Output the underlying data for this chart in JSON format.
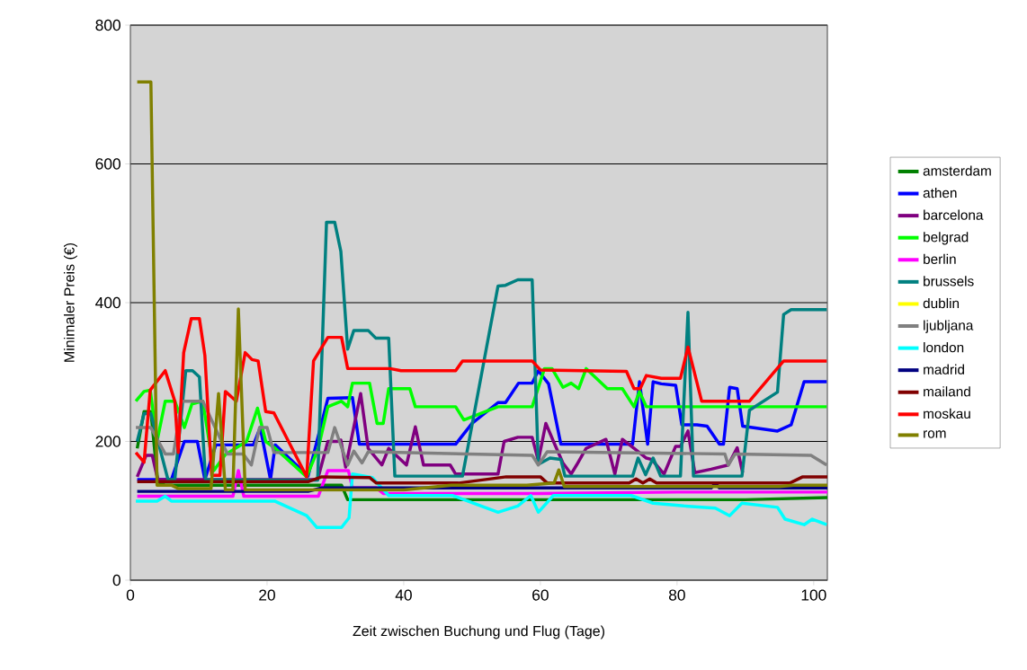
{
  "chart_data": {
    "type": "line",
    "xlabel": "Zeit zwischen Buchung und Flug (Tage)",
    "ylabel": "Minimaler Preis (€)",
    "xlim": [
      0,
      102
    ],
    "xticks": [
      0,
      20,
      40,
      60,
      80,
      100
    ],
    "ylim": [
      0,
      800
    ],
    "yticks": [
      0,
      200,
      400,
      600,
      800
    ],
    "grid": "y",
    "legend": "right",
    "line_style": "solid",
    "series": [
      {
        "name": "amsterdam",
        "color": "#008000",
        "x": [
          1,
          2,
          3,
          4,
          5,
          28,
          30.9,
          31.8,
          33,
          60,
          70,
          80,
          90,
          102
        ],
        "values": [
          190,
          243,
          243,
          142,
          137,
          137,
          137,
          116,
          116,
          116,
          116,
          116,
          116,
          119
        ]
      },
      {
        "name": "athen",
        "color": "#0000ff",
        "x": [
          1,
          6,
          7.9,
          9.8,
          10.9,
          12.5,
          18,
          19,
          20.5,
          21.2,
          26,
          28.9,
          32.5,
          33.5,
          47.6,
          50,
          53.8,
          54.9,
          56.8,
          58.8,
          59.7,
          61.2,
          63,
          73.5,
          74.5,
          75.7,
          76.5,
          77.7,
          79.8,
          80.7,
          82.9,
          84.4,
          86.2,
          86.8,
          87.7,
          88.8,
          89.6,
          94.7,
          96.7,
          98.6,
          101.9
        ],
        "values": [
          145,
          145,
          200,
          200,
          145,
          195,
          195,
          220,
          145,
          195,
          150,
          262,
          263,
          196,
          196,
          226,
          256,
          256,
          284,
          284,
          302,
          283,
          196,
          196,
          286,
          196,
          286,
          283,
          281,
          224,
          224,
          222,
          196,
          196,
          278,
          276,
          222,
          215,
          224,
          286,
          286
        ]
      },
      {
        "name": "barcelona",
        "color": "#800080",
        "x": [
          1,
          2.3,
          3.2,
          4,
          27.4,
          28.9,
          30.3,
          30.8,
          31.5,
          33.7,
          34.8,
          36.8,
          37.8,
          40.4,
          41.7,
          42.9,
          46.8,
          47.6,
          53.8,
          54.7,
          56.7,
          58.8,
          59.7,
          60.8,
          62,
          63.3,
          64.5,
          65.3,
          66.7,
          69.6,
          70.9,
          72,
          73.7,
          75.5,
          76.3,
          78.1,
          79.8,
          80.5,
          81.6,
          82.6,
          85,
          87.5,
          88.8,
          89.6
        ],
        "values": [
          149,
          180,
          180,
          145,
          145,
          200,
          200,
          202,
          163,
          269,
          190,
          166,
          190,
          166,
          221,
          166,
          166,
          153,
          153,
          200,
          206,
          206,
          172,
          226,
          198,
          169,
          153,
          166,
          190,
          203,
          153,
          203,
          190,
          176,
          174,
          153,
          193,
          193,
          215,
          155,
          160,
          166,
          191,
          155
        ]
      },
      {
        "name": "belgrad",
        "color": "#00ff00",
        "x": [
          0.8,
          2,
          2.9,
          3.9,
          5.1,
          6.5,
          7.9,
          9,
          10.6,
          12.2,
          13.9,
          17,
          18.6,
          19.8,
          21.2,
          25.8,
          27.5,
          28.9,
          30.9,
          31.8,
          32.5,
          35,
          36.1,
          37,
          37.8,
          40.9,
          41.7,
          47.6,
          48.8,
          53.8,
          58.8,
          60.6,
          61.7,
          63.3,
          64.5,
          65.6,
          66.7,
          69.8,
          72,
          73.7,
          74.5,
          75.5,
          101.9
        ],
        "values": [
          258,
          272,
          274,
          200,
          258,
          258,
          220,
          254,
          258,
          158,
          181,
          200,
          248,
          200,
          190,
          149,
          190,
          250,
          258,
          250,
          284,
          284,
          226,
          226,
          276,
          276,
          250,
          250,
          231,
          250,
          250,
          305,
          305,
          278,
          284,
          276,
          305,
          276,
          276,
          250,
          272,
          250,
          250
        ]
      },
      {
        "name": "berlin",
        "color": "#ff00ff",
        "x": [
          1,
          15,
          15.8,
          16.6,
          27.5,
          28.9,
          31.9,
          32.5,
          36,
          37,
          60,
          80,
          102
        ],
        "values": [
          121,
          121,
          158,
          121,
          121,
          158,
          158,
          133,
          133,
          125,
          125,
          127,
          127
        ]
      },
      {
        "name": "brussels",
        "color": "#008080",
        "x": [
          1,
          2,
          3,
          5.5,
          6.5,
          8.1,
          9.1,
          10.1,
          11,
          27.4,
          28.7,
          29.9,
          30.8,
          31.8,
          32.7,
          34.8,
          35.9,
          37.8,
          38.7,
          48.6,
          53.8,
          54.9,
          56.7,
          58.8,
          59.7,
          61.4,
          63,
          63.6,
          73.5,
          74.3,
          75.4,
          76.5,
          77.6,
          80.5,
          81.6,
          82.4,
          89.5,
          90.6,
          94.7,
          95.6,
          96.7,
          101.9
        ],
        "values": [
          200,
          240,
          240,
          145,
          145,
          302,
          302,
          293,
          145,
          144,
          516,
          516,
          474,
          333,
          360,
          360,
          349,
          349,
          150,
          150,
          424,
          425,
          433,
          433,
          167,
          176,
          174,
          150,
          150,
          176,
          152,
          176,
          150,
          150,
          386,
          150,
          150,
          245,
          271,
          383,
          390,
          390
        ]
      },
      {
        "name": "dublin",
        "color": "#ffff00"
      },
      {
        "name": "ljubljana",
        "color": "#808080",
        "x": [
          0.8,
          3,
          5.1,
          6.3,
          7.5,
          10.6,
          14.2,
          16.5,
          17.7,
          18.9,
          20,
          21,
          28.9,
          29.9,
          31.8,
          32.7,
          33.9,
          34.8,
          58.8,
          59.7,
          61,
          87,
          87.5,
          88.5,
          99.6,
          101.9
        ],
        "values": [
          220,
          220,
          182,
          182,
          258,
          258,
          182,
          182,
          166,
          220,
          220,
          184,
          184,
          220,
          166,
          186,
          169,
          185,
          180,
          166,
          185,
          182,
          166,
          182,
          180,
          166
        ]
      },
      {
        "name": "london",
        "color": "#00ffff",
        "x": [
          0.8,
          3.9,
          5.1,
          6,
          21.1,
          25.8,
          27.3,
          30.9,
          32,
          32.5,
          35.4,
          37.8,
          47.2,
          53.8,
          56.7,
          58.6,
          59.7,
          61.9,
          73.3,
          76.5,
          81,
          85.6,
          87.7,
          89.5,
          94.7,
          95.8,
          98.6,
          99.8,
          101.9
        ],
        "values": [
          114,
          114,
          121,
          114,
          114,
          93,
          76,
          76,
          90,
          153,
          148,
          122,
          122,
          98,
          107,
          122,
          98,
          122,
          122,
          111,
          107,
          104,
          93,
          111,
          105,
          88,
          80,
          88,
          80
        ]
      },
      {
        "name": "madrid",
        "color": "#000080",
        "x": [
          1,
          26,
          28,
          60,
          63,
          85,
          85.6,
          86.2,
          102
        ],
        "values": [
          128,
          128,
          133,
          133,
          133,
          133,
          140,
          133,
          133
        ]
      },
      {
        "name": "mailand",
        "color": "#800000",
        "x": [
          1,
          26,
          28,
          35,
          36,
          48,
          55,
          60,
          61,
          73,
          74,
          75,
          76,
          77,
          96.5,
          98.4,
          102
        ],
        "values": [
          142,
          142,
          149,
          148,
          140,
          140,
          149,
          149,
          140,
          140,
          146,
          140,
          146,
          140,
          140,
          149,
          149
        ]
      },
      {
        "name": "moskau",
        "color": "#ff0000",
        "x": [
          0.8,
          2,
          2.9,
          5.1,
          6.5,
          7,
          7.8,
          8.9,
          10.1,
          10.9,
          11.9,
          13.1,
          13.9,
          15.5,
          16.8,
          17.8,
          18.7,
          19.8,
          21,
          25.8,
          26.8,
          28.9,
          30.9,
          31.8,
          38,
          39.6,
          47.6,
          48.6,
          58.8,
          60,
          72.6,
          73.7,
          74.6,
          75.5,
          77.7,
          80.5,
          81.6,
          83.6,
          90.6,
          95.6,
          101.9
        ],
        "values": [
          184,
          170,
          274,
          302,
          258,
          184,
          328,
          377,
          377,
          324,
          151,
          151,
          272,
          258,
          328,
          318,
          316,
          243,
          241,
          149,
          316,
          350,
          350,
          305,
          305,
          302,
          302,
          316,
          316,
          303,
          301,
          276,
          276,
          295,
          291,
          291,
          336,
          258,
          258,
          316,
          316
        ]
      },
      {
        "name": "rom",
        "color": "#808000",
        "x": [
          1,
          3,
          3.9,
          6,
          7,
          11.8,
          12.9,
          13.9,
          15,
          15.8,
          16.8,
          40,
          47,
          58,
          62,
          62.7,
          63.5,
          95,
          97,
          102
        ],
        "values": [
          718,
          718,
          137,
          137,
          132,
          132,
          269,
          130,
          130,
          391,
          130,
          130,
          137,
          137,
          140,
          159,
          135,
          135,
          137,
          137
        ]
      }
    ]
  }
}
